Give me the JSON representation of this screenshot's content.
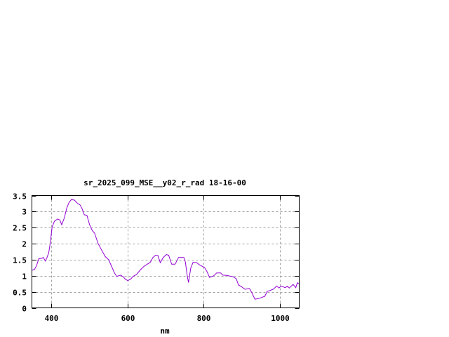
{
  "chart_data": {
    "type": "line",
    "title": "sr_2025_099_MSE__y02_r_rad 18-16-00",
    "xlabel": "nm",
    "ylabel": "",
    "xlim": [
      350,
      1050
    ],
    "ylim": [
      0,
      3.5
    ],
    "xticks": [
      400,
      600,
      800,
      1000
    ],
    "xtick_labels": [
      "400",
      "600",
      "800",
      "1000"
    ],
    "yticks": [
      0,
      0.5,
      1,
      1.5,
      2,
      2.5,
      3,
      3.5
    ],
    "ytick_labels": [
      "0",
      "0.5",
      "1",
      "1.5",
      "2",
      "2.5",
      "3",
      "3.5"
    ],
    "grid": true,
    "line_color": "#9400d3",
    "series": [
      {
        "x": [
          350,
          357,
          362,
          368,
          377,
          380,
          385,
          389,
          394,
          398,
          403,
          409,
          417,
          423,
          428,
          435,
          441,
          447,
          453,
          461,
          469,
          476,
          481,
          487,
          494,
          501,
          508,
          514,
          523,
          533,
          542,
          551,
          559,
          566,
          572,
          582,
          589,
          595,
          601,
          608,
          615,
          624,
          633,
          643,
          652,
          660,
          667,
          674,
          680,
          686,
          694,
          702,
          708,
          716,
          725,
          734,
          748,
          752,
          757,
          760,
          766,
          772,
          781,
          790,
          802,
          809,
          815,
          826,
          834,
          844,
          850,
          860,
          877,
          885,
          891,
          899,
          908,
          920,
          926,
          934,
          944,
          960,
          966,
          975,
          982,
          991,
          997,
          1003,
          1013,
          1019,
          1024,
          1034,
          1041,
          1045,
          1049
        ],
        "y": [
          1.17,
          1.2,
          1.31,
          1.53,
          1.55,
          1.57,
          1.46,
          1.55,
          1.71,
          2.01,
          2.52,
          2.7,
          2.77,
          2.74,
          2.59,
          2.81,
          3.1,
          3.28,
          3.37,
          3.36,
          3.26,
          3.21,
          3.1,
          2.9,
          2.88,
          2.59,
          2.41,
          2.33,
          2.01,
          1.79,
          1.6,
          1.5,
          1.28,
          1.09,
          0.98,
          1.02,
          0.97,
          0.89,
          0.85,
          0.89,
          0.98,
          1.04,
          1.17,
          1.29,
          1.36,
          1.42,
          1.57,
          1.64,
          1.63,
          1.41,
          1.57,
          1.66,
          1.64,
          1.36,
          1.36,
          1.57,
          1.57,
          1.42,
          0.98,
          0.79,
          1.24,
          1.42,
          1.41,
          1.33,
          1.26,
          1.12,
          0.95,
          1.0,
          1.09,
          1.09,
          1.02,
          1.01,
          0.97,
          0.91,
          0.71,
          0.66,
          0.58,
          0.6,
          0.47,
          0.27,
          0.29,
          0.36,
          0.51,
          0.55,
          0.58,
          0.68,
          0.62,
          0.68,
          0.63,
          0.67,
          0.62,
          0.73,
          0.63,
          0.78,
          0.75
        ]
      }
    ]
  }
}
